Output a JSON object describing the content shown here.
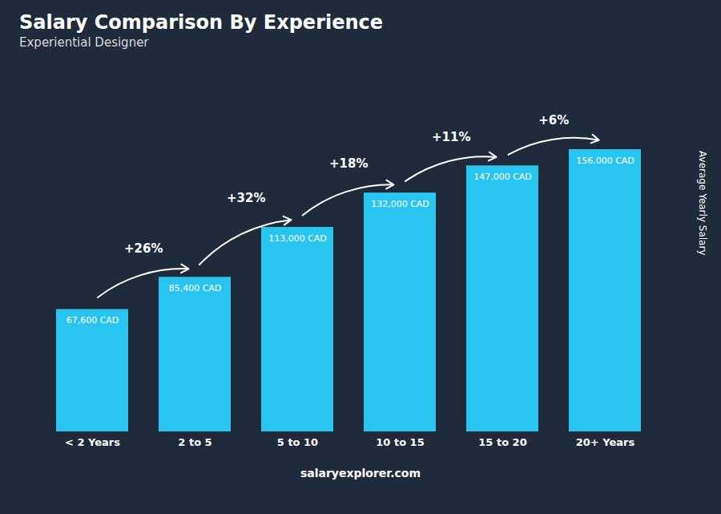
{
  "chart_data": {
    "type": "bar",
    "title": "Salary Comparison By Experience",
    "subtitle": "Experiential Designer",
    "ylabel": "Average Yearly Salary",
    "categories": [
      "< 2 Years",
      "2 to 5",
      "5 to 10",
      "10 to 15",
      "15 to 20",
      "20+ Years"
    ],
    "values": [
      67600,
      85400,
      113000,
      132000,
      147000,
      156000
    ],
    "value_labels": [
      "67,600 CAD",
      "85,400 CAD",
      "113,000 CAD",
      "132,000 CAD",
      "147,000 CAD",
      "156,000 CAD"
    ],
    "data_labels": true,
    "annotations": [
      null,
      "+26%",
      "+32%",
      "+18%",
      "+11%",
      "+6%"
    ],
    "caption": "salaryexplorer.com",
    "color": "#29c4f0",
    "ylim": [
      0,
      195000
    ],
    "tick_labels": "x",
    "grid": false
  }
}
